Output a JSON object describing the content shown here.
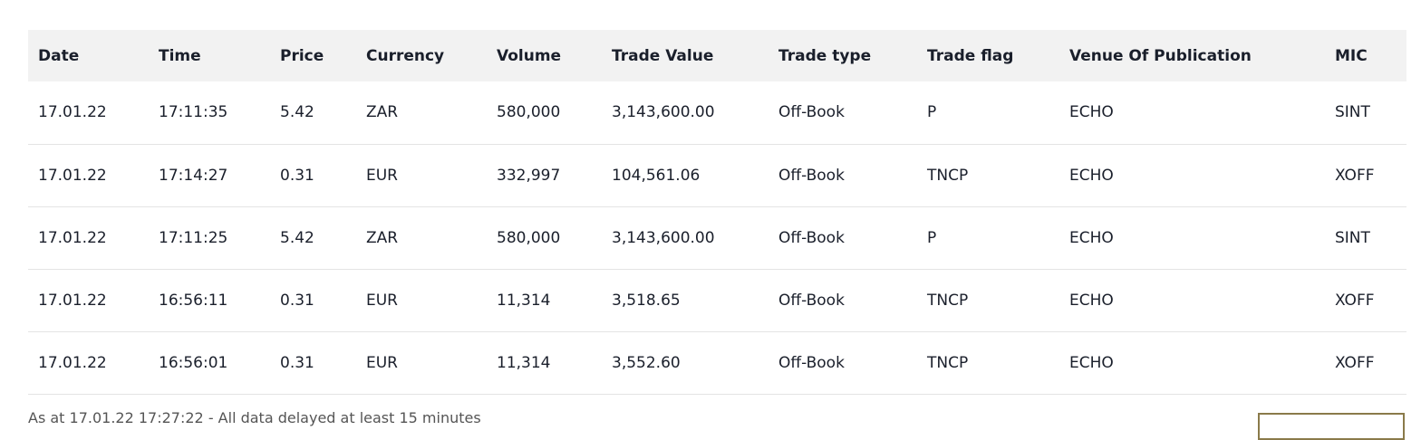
{
  "table": {
    "columns": [
      "Date",
      "Time",
      "Price",
      "Currency",
      "Volume",
      "Trade Value",
      "Trade type",
      "Trade flag",
      "Venue Of Publication",
      "MIC"
    ],
    "rows": [
      [
        "17.01.22",
        "17:11:35",
        "5.42",
        "ZAR",
        "580,000",
        "3,143,600.00",
        "Off-Book",
        "P",
        "ECHO",
        "SINT"
      ],
      [
        "17.01.22",
        "17:14:27",
        "0.31",
        "EUR",
        "332,997",
        "104,561.06",
        "Off-Book",
        "TNCP",
        "ECHO",
        "XOFF"
      ],
      [
        "17.01.22",
        "17:11:25",
        "5.42",
        "ZAR",
        "580,000",
        "3,143,600.00",
        "Off-Book",
        "P",
        "ECHO",
        "SINT"
      ],
      [
        "17.01.22",
        "16:56:11",
        "0.31",
        "EUR",
        "11,314",
        "3,518.65",
        "Off-Book",
        "TNCP",
        "ECHO",
        "XOFF"
      ],
      [
        "17.01.22",
        "16:56:01",
        "0.31",
        "EUR",
        "11,314",
        "3,552.60",
        "Off-Book",
        "TNCP",
        "ECHO",
        "XOFF"
      ]
    ]
  },
  "footer": {
    "note": "As at 17.01.22 17:27:22 - All data delayed at least 15 minutes"
  }
}
